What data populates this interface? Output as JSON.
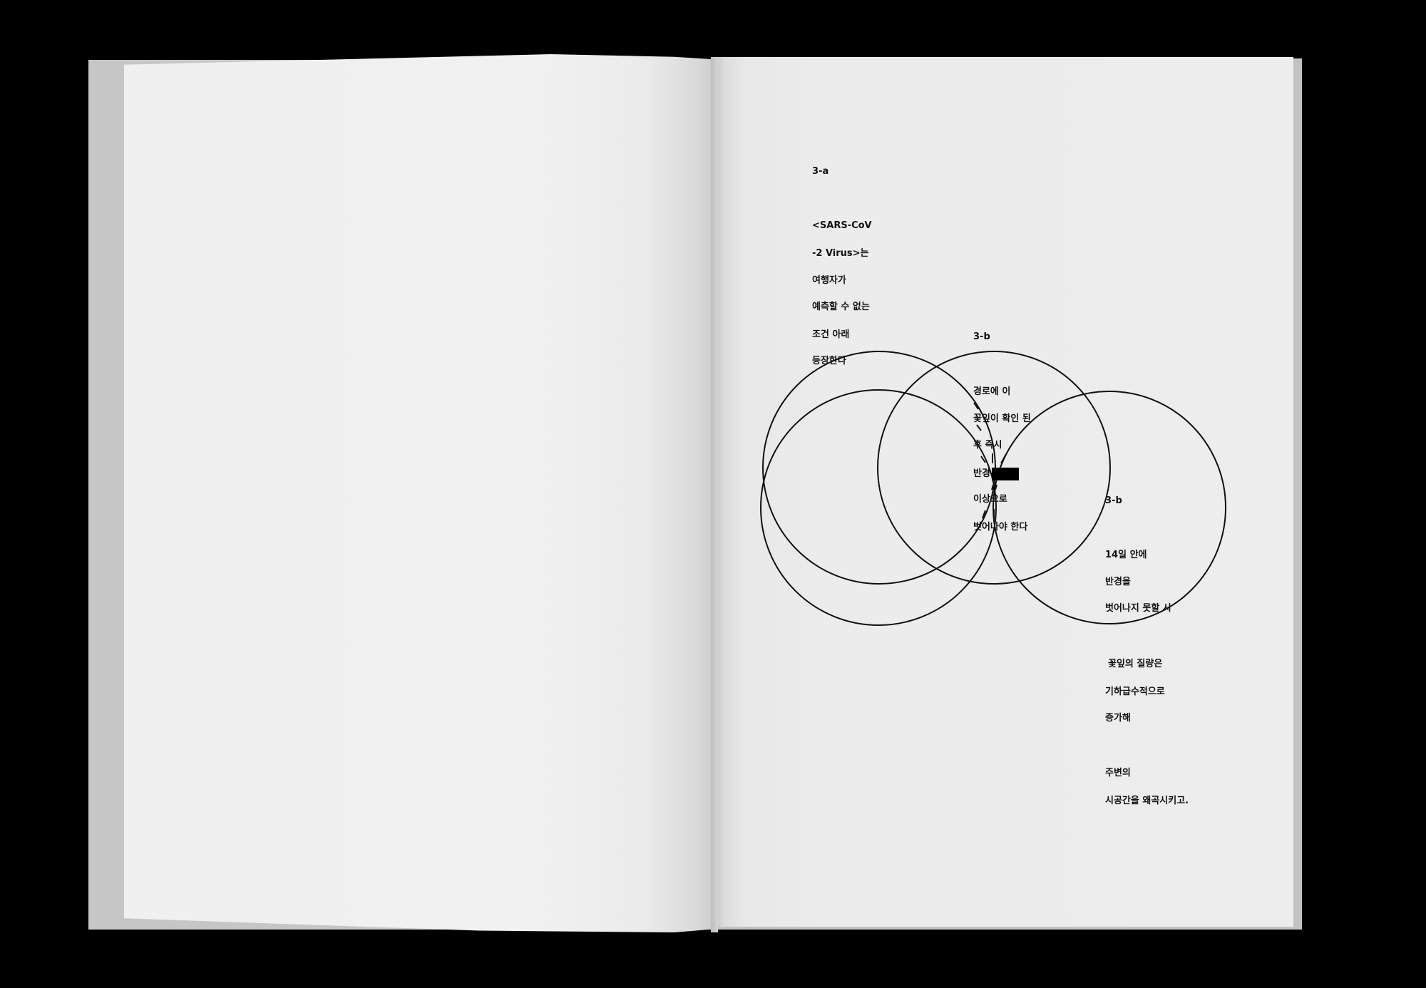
{
  "page_right": {
    "section_3a": {
      "label": "3-a",
      "lines": [
        "<SARS-CoV",
        "-2 Virus>는",
        "여행자가",
        "예측할 수 없는",
        "조건 아래",
        "등장한다"
      ]
    },
    "section_3b_center": {
      "label": "3-b",
      "lines": [
        "경로에 이",
        "꽃잎이 확인 된",
        "후 즉시",
        "반경",
        "이상으로",
        "벗어나야 한다"
      ]
    },
    "section_3b_right": {
      "label": "3-b",
      "lines": [
        "14일 안에",
        "반경을",
        "벗어나지 못할 시"
      ]
    },
    "section_after": {
      "lines": [
        "꽃잎의 질량은",
        "기하급수적으로",
        "증가해",
        "주변의",
        "시공간을 왜곡시키고."
      ]
    }
  }
}
